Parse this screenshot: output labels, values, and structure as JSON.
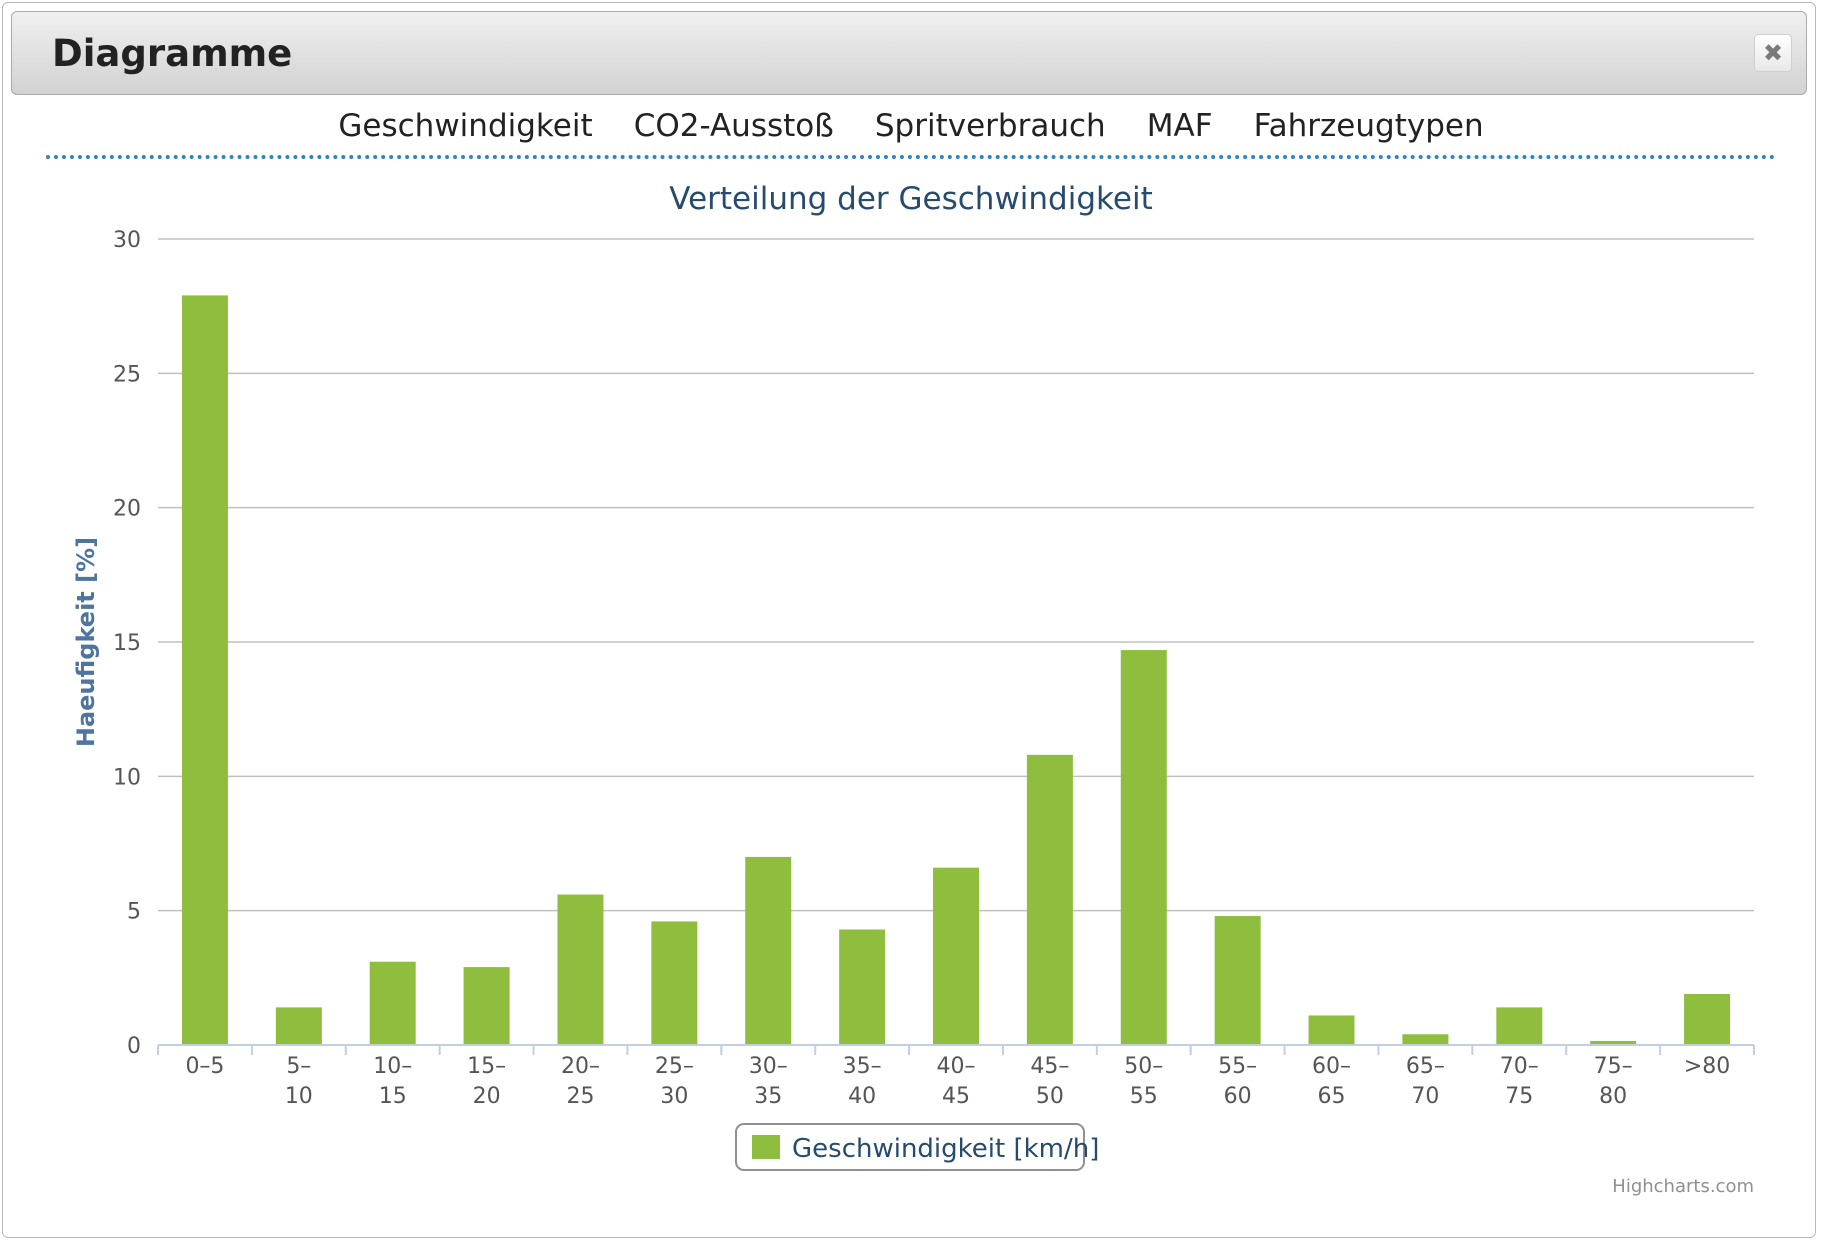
{
  "dialog": {
    "title": "Diagramme",
    "close_icon": "close-icon",
    "close_symbol": "✖"
  },
  "tabs": [
    {
      "label": "Geschwindigkeit"
    },
    {
      "label": "CO2-Ausstoß"
    },
    {
      "label": "Spritverbrauch"
    },
    {
      "label": "MAF"
    },
    {
      "label": "Fahrzeugtypen"
    }
  ],
  "chart_data": {
    "type": "bar",
    "title": "Verteilung der Geschwindigkeit",
    "ylabel": "Haeufigkeit [%]",
    "xlabel": "",
    "ylim": [
      0,
      30
    ],
    "yticks": [
      0,
      5,
      10,
      15,
      20,
      25,
      30
    ],
    "grid": true,
    "legend": "bottom-center",
    "categories": [
      "0–5",
      "5–10",
      "10–15",
      "15–20",
      "20–25",
      "25–30",
      "30–35",
      "35–40",
      "40–45",
      "45–50",
      "50–55",
      "55–60",
      "60–65",
      "65–70",
      "70–75",
      "75–80",
      ">80"
    ],
    "category_lines": [
      [
        "0–5"
      ],
      [
        "5–",
        "10"
      ],
      [
        "10–",
        "15"
      ],
      [
        "15–",
        "20"
      ],
      [
        "20–",
        "25"
      ],
      [
        "25–",
        "30"
      ],
      [
        "30–",
        "35"
      ],
      [
        "35–",
        "40"
      ],
      [
        "40–",
        "45"
      ],
      [
        "45–",
        "50"
      ],
      [
        "50–",
        "55"
      ],
      [
        "55–",
        "60"
      ],
      [
        "60–",
        "65"
      ],
      [
        "65–",
        "70"
      ],
      [
        "70–",
        "75"
      ],
      [
        "75–",
        "80"
      ],
      [
        ">80"
      ]
    ],
    "series": [
      {
        "name": "Geschwindigkeit [km/h]",
        "color": "#8fbe3f",
        "values": [
          27.9,
          1.4,
          3.1,
          2.9,
          5.6,
          4.6,
          7.0,
          4.3,
          6.6,
          10.8,
          14.7,
          4.8,
          1.1,
          0.4,
          1.4,
          0.15,
          1.9
        ]
      }
    ],
    "credits": "Highcharts.com"
  },
  "colors": {
    "title": "#274b6d",
    "ylabel": "#4d759e",
    "grid": "#c0c0c0",
    "axis": "#c0d0e0",
    "tab_divider": "#2a86c8"
  }
}
